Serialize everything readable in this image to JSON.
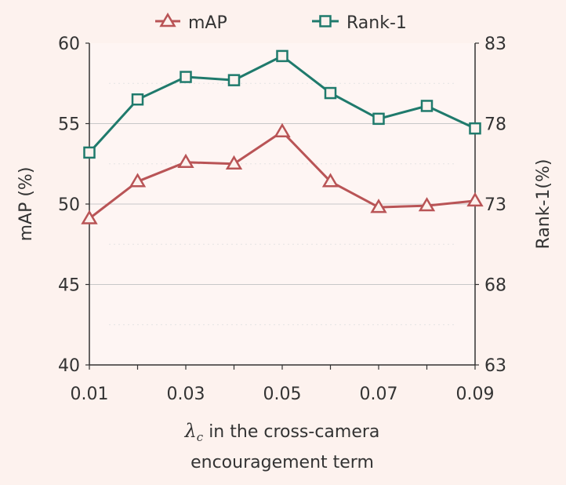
{
  "chart_data": {
    "type": "line",
    "x": [
      0.01,
      0.02,
      0.03,
      0.04,
      0.05,
      0.06,
      0.07,
      0.08,
      0.09
    ],
    "x_tick_labels": [
      "0.01",
      "0.03",
      "0.05",
      "0.07",
      "0.09"
    ],
    "x_ticks": [
      0.01,
      0.03,
      0.05,
      0.07,
      0.09
    ],
    "xlim": [
      0.01,
      0.09
    ],
    "xlabel_symbol": "λ",
    "xlabel_subscript": "c",
    "xlabel_line1_rest": " in the cross-camera",
    "xlabel_line2": "encouragement term",
    "ylabel_left": "mAP (%)",
    "ylabel_right": "Rank-1(%)",
    "ylim_left": [
      40,
      60
    ],
    "ylim_right": [
      63,
      83
    ],
    "y_ticks_left": [
      "40",
      "45",
      "50",
      "55",
      "60"
    ],
    "y_ticks_right": [
      "63",
      "68",
      "73",
      "78",
      "83"
    ],
    "grid": true,
    "legend_position": "top",
    "series": [
      {
        "name": "mAP",
        "axis": "left",
        "marker": "triangle",
        "color": "#b95456",
        "values": [
          49.1,
          51.4,
          52.6,
          52.5,
          54.5,
          51.4,
          49.8,
          49.9,
          50.2
        ]
      },
      {
        "name": "Rank-1",
        "axis": "right",
        "marker": "square",
        "color": "#1f7a6c",
        "values": [
          76.2,
          79.5,
          80.9,
          80.7,
          82.2,
          79.9,
          78.3,
          79.1,
          77.7
        ]
      }
    ]
  }
}
